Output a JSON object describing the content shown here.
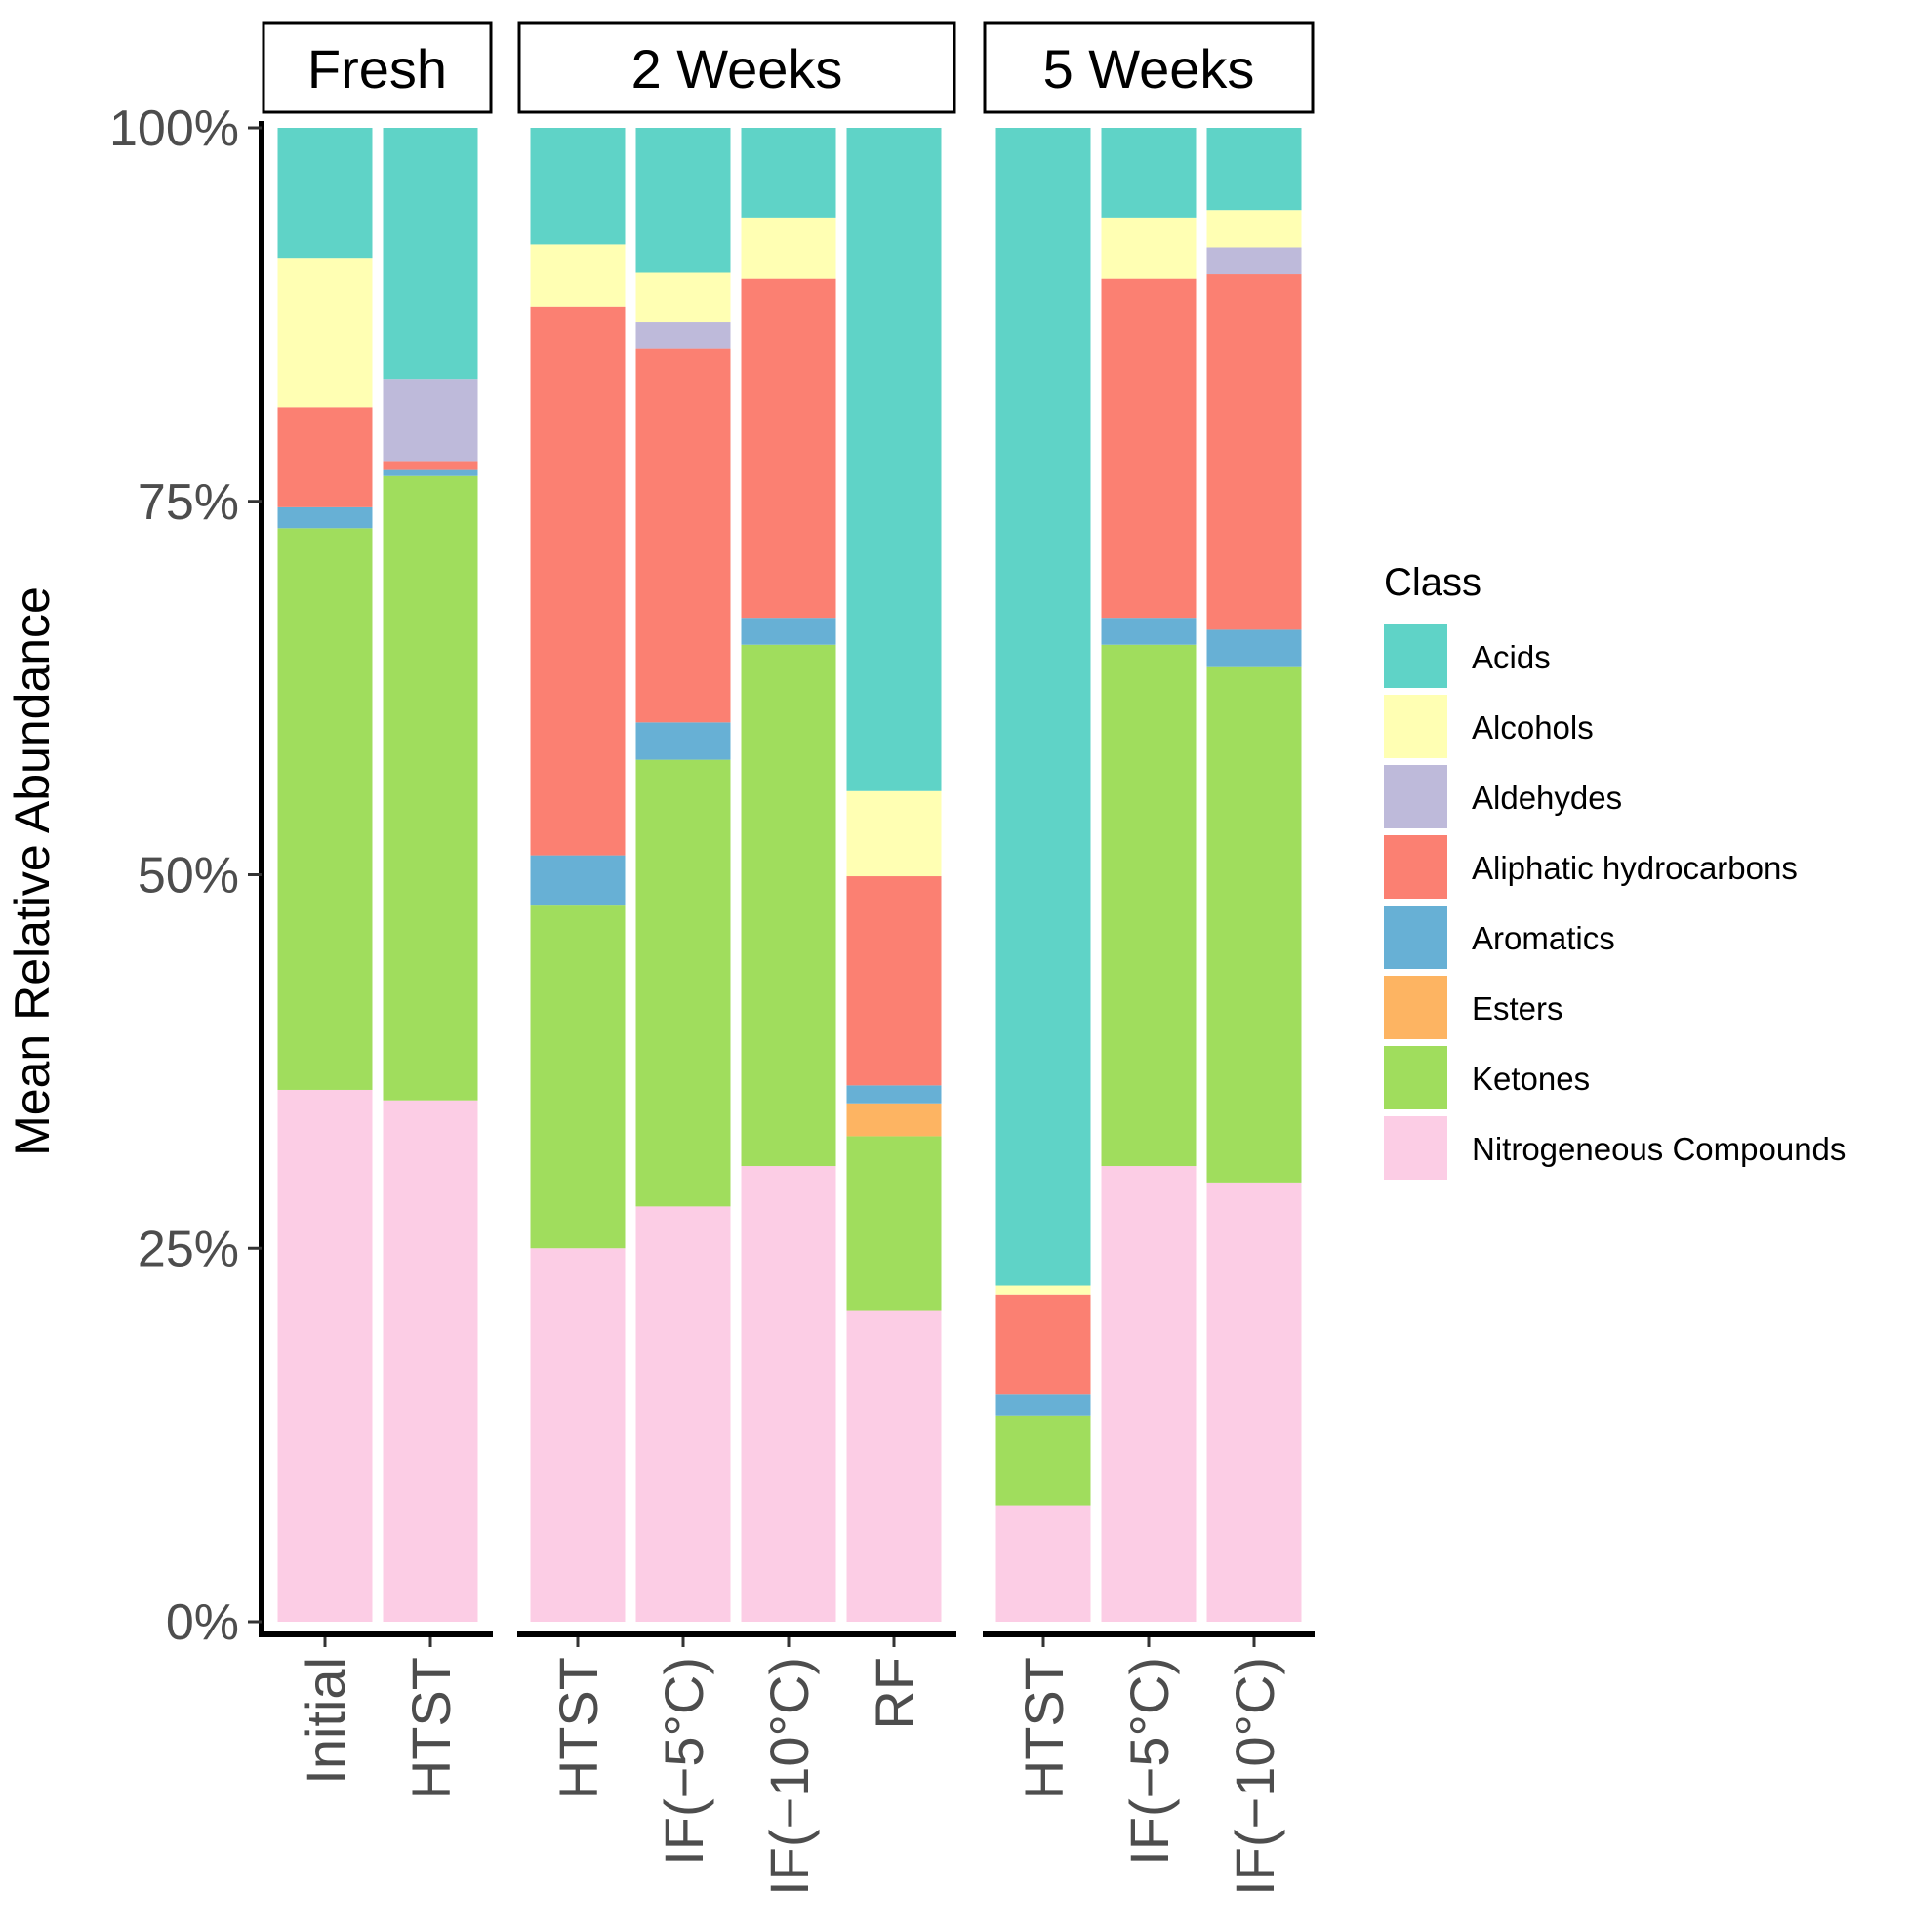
{
  "chart_data": {
    "type": "bar",
    "stacked": true,
    "ylabel": "Mean Relative Abundance",
    "xlabel": "",
    "ylim": [
      0,
      100
    ],
    "y_ticks": [
      {
        "value": 0,
        "label": "0%"
      },
      {
        "value": 25,
        "label": "25%"
      },
      {
        "value": 50,
        "label": "50%"
      },
      {
        "value": 75,
        "label": "75%"
      },
      {
        "value": 100,
        "label": "100%"
      }
    ],
    "legend": {
      "title": "Class",
      "position": "right",
      "entries": [
        {
          "name": "Acids",
          "color": "#5fd3c7"
        },
        {
          "name": "Alcohols",
          "color": "#ffffb3"
        },
        {
          "name": "Aldehydes",
          "color": "#bebada"
        },
        {
          "name": "Aliphatic hydrocarbons",
          "color": "#fb8072"
        },
        {
          "name": "Aromatics",
          "color": "#67b0d5"
        },
        {
          "name": "Esters",
          "color": "#fdb462"
        },
        {
          "name": "Ketones",
          "color": "#a0dd5d"
        },
        {
          "name": "Nitrogeneous Compounds",
          "color": "#fccde5"
        }
      ]
    },
    "stack_order_bottom_to_top": [
      "Nitrogeneous Compounds",
      "Ketones",
      "Esters",
      "Aromatics",
      "Aliphatic hydrocarbons",
      "Aldehydes",
      "Alcohols",
      "Acids"
    ],
    "panels": [
      {
        "title": "Fresh",
        "bars": [
          {
            "label": "Initial",
            "values": {
              "Nitrogeneous Compounds": 35.6,
              "Ketones": 37.6,
              "Esters": 0,
              "Aromatics": 1.4,
              "Aliphatic hydrocarbons": 6.7,
              "Aldehydes": 0,
              "Alcohols": 10.0,
              "Acids": 8.7
            }
          },
          {
            "label": "HTST",
            "values": {
              "Nitrogeneous Compounds": 34.9,
              "Ketones": 41.8,
              "Esters": 0,
              "Aromatics": 0.4,
              "Aliphatic hydrocarbons": 0.6,
              "Aldehydes": 5.5,
              "Alcohols": 0,
              "Acids": 16.8
            }
          }
        ]
      },
      {
        "title": "2 Weeks",
        "bars": [
          {
            "label": "HTST",
            "values": {
              "Nitrogeneous Compounds": 25.0,
              "Ketones": 23.0,
              "Esters": 0,
              "Aromatics": 3.3,
              "Aliphatic hydrocarbons": 36.7,
              "Aldehydes": 0,
              "Alcohols": 4.2,
              "Acids": 7.8
            }
          },
          {
            "label": "IF(−5°C)",
            "values": {
              "Nitrogeneous Compounds": 27.8,
              "Ketones": 29.9,
              "Esters": 0,
              "Aromatics": 2.5,
              "Aliphatic hydrocarbons": 25.0,
              "Aldehydes": 1.8,
              "Alcohols": 3.3,
              "Acids": 9.7
            }
          },
          {
            "label": "IF(−10°C)",
            "values": {
              "Nitrogeneous Compounds": 30.5,
              "Ketones": 34.9,
              "Esters": 0,
              "Aromatics": 1.8,
              "Aliphatic hydrocarbons": 22.7,
              "Aldehydes": 0,
              "Alcohols": 4.1,
              "Acids": 6.0
            }
          },
          {
            "label": "RF",
            "values": {
              "Nitrogeneous Compounds": 20.8,
              "Ketones": 11.7,
              "Esters": 2.2,
              "Aromatics": 1.2,
              "Aliphatic hydrocarbons": 14.0,
              "Aldehydes": 0,
              "Alcohols": 5.7,
              "Acids": 44.4
            }
          }
        ]
      },
      {
        "title": "5 Weeks",
        "bars": [
          {
            "label": "HTST",
            "values": {
              "Nitrogeneous Compounds": 7.8,
              "Ketones": 6.0,
              "Esters": 0,
              "Aromatics": 1.4,
              "Aliphatic hydrocarbons": 6.7,
              "Aldehydes": 0,
              "Alcohols": 0.6,
              "Acids": 77.5
            }
          },
          {
            "label": "IF(−5°C)",
            "values": {
              "Nitrogeneous Compounds": 30.5,
              "Ketones": 34.9,
              "Esters": 0,
              "Aromatics": 1.8,
              "Aliphatic hydrocarbons": 22.7,
              "Aldehydes": 0,
              "Alcohols": 4.1,
              "Acids": 6.0
            }
          },
          {
            "label": "IF(−10°C)",
            "values": {
              "Nitrogeneous Compounds": 29.4,
              "Ketones": 34.5,
              "Esters": 0,
              "Aromatics": 2.5,
              "Aliphatic hydrocarbons": 23.8,
              "Aldehydes": 1.8,
              "Alcohols": 2.5,
              "Acids": 5.5
            }
          }
        ]
      }
    ]
  }
}
